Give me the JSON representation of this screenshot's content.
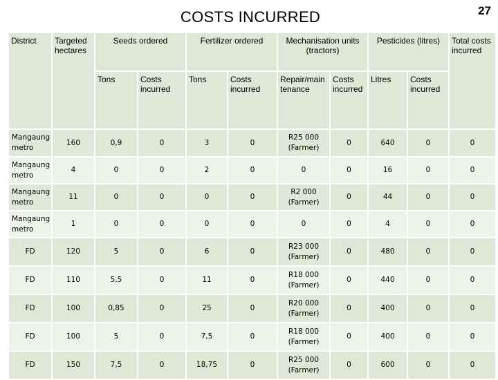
{
  "title": "COSTS INCURRED",
  "page_number": "27",
  "headers": {
    "district": "District",
    "targeted": "Targeted hectares",
    "seeds": "Seeds ordered",
    "fertilizer": "Fertilizer ordered",
    "mechanisation": "Mechanisation units (tractors)",
    "pesticides": "Pesticides (litres)",
    "total": "Total costs incurred"
  },
  "subheaders": {
    "seeds_tons": "Tons",
    "seeds_costs": "Costs incurred",
    "fert_tons": "Tons",
    "fert_costs": "Costs incurred",
    "mech_repair": "Repair/main tenance",
    "mech_costs": "Costs incurred",
    "pest_litres": "Litres",
    "pest_costs": "Costs incurred"
  },
  "rows": [
    [
      "Mangaung metro",
      "160",
      "0,9",
      "0",
      "3",
      "0",
      "R25 000 (Farmer)",
      "0",
      "640",
      "0",
      "0"
    ],
    [
      "Mangaung metro",
      "4",
      "0",
      "0",
      "2",
      "0",
      "0",
      "0",
      "16",
      "0",
      "0"
    ],
    [
      "Mangaung metro",
      "11",
      "0",
      "0",
      "0",
      "0",
      "R2 000 (Farmer)",
      "0",
      "44",
      "0",
      "0"
    ],
    [
      "Mangaung metro",
      "1",
      "0",
      "0",
      "0",
      "0",
      "0",
      "0",
      "4",
      "0",
      "0"
    ],
    [
      "FD",
      "120",
      "5",
      "0",
      "6",
      "0",
      "R23 000 (Farmer)",
      "0",
      "480",
      "0",
      "0"
    ],
    [
      "FD",
      "110",
      "5,5",
      "0",
      "11",
      "0",
      "R18 000 (Farmer)",
      "0",
      "440",
      "0",
      "0"
    ],
    [
      "FD",
      "100",
      "0,85",
      "0",
      "25",
      "0",
      "R20 000 (Farmer)",
      "0",
      "400",
      "0",
      "0"
    ],
    [
      "FD",
      "100",
      "5",
      "0",
      "7,5",
      "0",
      "R18 000 (Farmer)",
      "0",
      "400",
      "0",
      "0"
    ],
    [
      "FD",
      "150",
      "7,5",
      "0",
      "18,75",
      "0",
      "R25 000 (Farmer)",
      "0",
      "600",
      "0",
      "0"
    ]
  ]
}
